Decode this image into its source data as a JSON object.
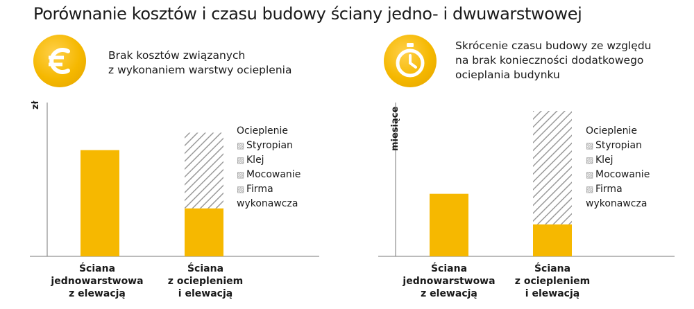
{
  "title": "Porównanie kosztów i czasu budowy ściany jedno- i dwuwarstwowej",
  "colors": {
    "accent": "#f6b800",
    "hatch": "#9a9a9a",
    "axis": "#777777"
  },
  "icons": {
    "left": "euro-icon",
    "right": "stopwatch-icon"
  },
  "left_caption": [
    "Brak kosztów związanych",
    "z wykonaniem warstwy ocieplenia"
  ],
  "right_caption": [
    "Skrócenie czasu budowy ze względu",
    "na brak konieczności dodatkowego",
    "ocieplania budynku"
  ],
  "chart_data": [
    {
      "type": "bar",
      "stacked": true,
      "ylabel": "zł",
      "categories": [
        [
          "Ściana",
          "jednowarstwowa",
          "z elewacją"
        ],
        [
          "Ściana",
          "z ociepleniem",
          "i elewacją"
        ]
      ],
      "series": [
        {
          "values": [
            73,
            33
          ],
          "fill": "solid"
        },
        {
          "name": "Ocieplenie",
          "values": [
            0,
            52
          ],
          "fill": "hatched"
        }
      ],
      "legend": {
        "title": "Ocieplenie",
        "items": [
          "Styropian",
          "Klej",
          "Mocowanie",
          "Firma",
          "wykonawcza"
        ],
        "position": "right"
      },
      "ylim": [
        0,
        100
      ],
      "grid": false
    },
    {
      "type": "bar",
      "stacked": true,
      "ylabel": "miesiące",
      "categories": [
        [
          "Ściana",
          "jednowarstwowa",
          "z elewacją"
        ],
        [
          "Ściana",
          "z ociepleniem",
          "i elewacją"
        ]
      ],
      "series": [
        {
          "values": [
            43,
            22
          ],
          "fill": "solid"
        },
        {
          "name": "Ocieplenie",
          "values": [
            0,
            78
          ],
          "fill": "hatched"
        }
      ],
      "legend": {
        "title": "Ocieplenie",
        "items": [
          "Styropian",
          "Klej",
          "Mocowanie",
          "Firma",
          "wykonawcza"
        ],
        "position": "right"
      },
      "ylim": [
        0,
        100
      ],
      "grid": false
    }
  ]
}
